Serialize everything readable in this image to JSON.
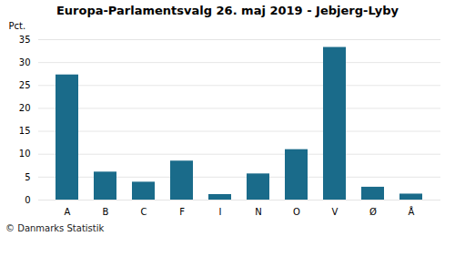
{
  "chart_data": {
    "type": "bar",
    "title": "Europa-Parlamentsvalg 26. maj 2019 - Jebjerg-Lyby",
    "categories": [
      "A",
      "B",
      "C",
      "F",
      "I",
      "N",
      "O",
      "V",
      "Ø",
      "Å"
    ],
    "values": [
      27.3,
      6.1,
      3.9,
      8.5,
      1.2,
      5.7,
      11.0,
      33.3,
      2.8,
      1.3
    ],
    "color": "#1a6b8a",
    "ylabel": "Pct.",
    "ylim": [
      0,
      35
    ],
    "yticks": [
      0,
      5,
      10,
      15,
      20,
      25,
      30,
      35
    ],
    "grid": true,
    "annotations": [
      "© Danmarks Statistik"
    ]
  }
}
